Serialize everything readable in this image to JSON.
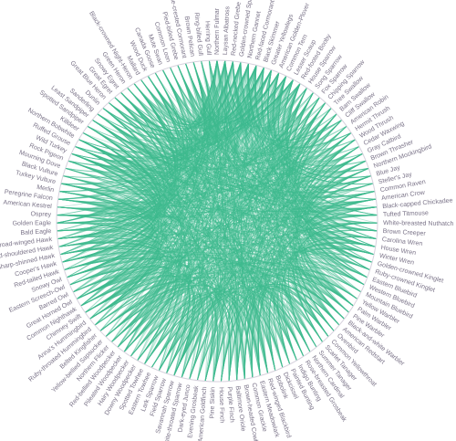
{
  "diagram": {
    "type": "chord-bundle",
    "link_color": "#3dbb8f",
    "label_color": "#7a7388",
    "hub_labels": [
      "Northern Fulmar",
      "Laysan Albatross",
      "Red-necked Grebe",
      "Golden-crowned Sparrow",
      "Northern Gannet",
      "Red-faced Cormorant",
      "Black Skimmer",
      "Greater Yellowlegs",
      "American Golden-Plover",
      "Common Tern",
      "Lesser Scaup",
      "Red-footed Booby"
    ],
    "labels": [
      "House Sparrow",
      "Song Sparrow",
      "Fox Sparrow",
      "Chipping Sparrow",
      "Tree Swallow",
      "Barn Swallow",
      "Cliff Swallow",
      "American Robin",
      "Hermit Thrush",
      "Wood Thrush",
      "Cedar Waxwing",
      "Gray Catbird",
      "Brown Thrasher",
      "Northern Mockingbird",
      "Blue Jay",
      "Steller's Jay",
      "Common Raven",
      "American Crow",
      "Black-capped Chickadee",
      "Tufted Titmouse",
      "White-breasted Nuthatch",
      "Brown Creeper",
      "Carolina Wren",
      "House Wren",
      "Winter Wren",
      "Golden-crowned Kinglet",
      "Ruby-crowned Kinglet",
      "Eastern Bluebird",
      "Western Bluebird",
      "Mountain Bluebird",
      "Yellow Warbler",
      "Palm Warbler",
      "Pine Warbler",
      "Black-and-white Warbler",
      "American Redstart",
      "Ovenbird",
      "Common Yellowthroat",
      "Scarlet Tanager",
      "Summer Tanager",
      "Northern Cardinal",
      "Rose-breasted Grosbeak",
      "Indigo Bunting",
      "Painted Bunting",
      "Dickcissel",
      "Bobolink",
      "Red-winged Blackbird",
      "Eastern Meadowlark",
      "Common Grackle",
      "Brown-headed Cowbird",
      "Baltimore Oriole",
      "Purple Finch",
      "House Finch",
      "Pine Siskin",
      "American Goldfinch",
      "Evening Grosbeak",
      "Dark-eyed Junco",
      "White-throated Sparrow",
      "Savannah Sparrow",
      "Field Sparrow",
      "Lark Sparrow",
      "Eastern Towhee",
      "Spotted Towhee",
      "Downy Woodpecker",
      "Hairy Woodpecker",
      "Pileated Woodpecker",
      "Red-bellied Woodpecker",
      "Northern Flicker",
      "Yellow-bellied Sapsucker",
      "Belted Kingfisher",
      "Ruby-throated Hummingbird",
      "Anna's Hummingbird",
      "Chimney Swift",
      "Common Nighthawk",
      "Great Horned Owl",
      "Barred Owl",
      "Eastern Screech-Owl",
      "Snowy Owl",
      "Red-tailed Hawk",
      "Cooper's Hawk",
      "Sharp-shinned Hawk",
      "Red-shouldered Hawk",
      "Broad-winged Hawk",
      "Bald Eagle",
      "Golden Eagle",
      "Osprey",
      "American Kestrel",
      "Peregrine Falcon",
      "Merlin",
      "Turkey Vulture",
      "Black Vulture",
      "Mourning Dove",
      "Rock Pigeon",
      "Wild Turkey",
      "Ruffed Grouse",
      "Northern Bobwhite",
      "Killdeer",
      "Spotted Sandpiper",
      "Least Sandpiper",
      "Sanderling",
      "Dunlin",
      "Great Blue Heron",
      "Great Egret",
      "Snowy Egret",
      "Green Heron",
      "Black-crowned Night-Heron",
      "Mallard",
      "Wood Duck",
      "Canada Goose",
      "Mute Swan",
      "Common Loon",
      "Pied-billed Grebe",
      "Double-crested Cormorant",
      "Brown Pelican",
      "Ring-billed Gull",
      "Herring Gull"
    ]
  }
}
